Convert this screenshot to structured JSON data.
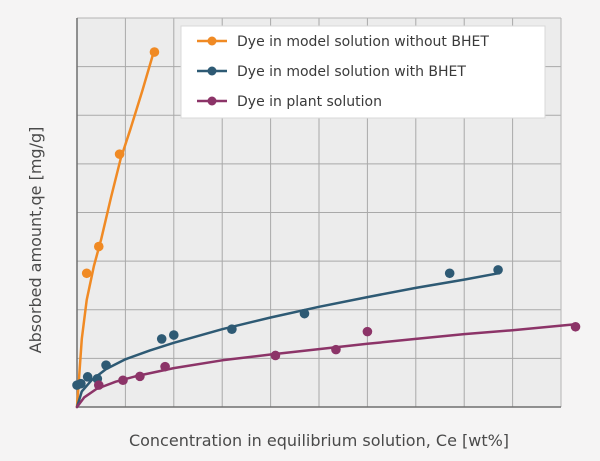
{
  "chart_data": {
    "type": "line",
    "title": "",
    "xlabel": "Concentration in equilibrium solution, Ce [wt%]",
    "ylabel": "Absorbed amount,qe [mg/g]",
    "x_tick_labels": "none",
    "y_tick_labels": "none",
    "xlim": [
      0,
      10
    ],
    "ylim": [
      0,
      8
    ],
    "grid": true,
    "legend_position": "top-right",
    "series": [
      {
        "name": "Dye in model solution without BHET",
        "color": "#f08a24",
        "points": [
          [
            0.2,
            2.75
          ],
          [
            0.45,
            3.3
          ],
          [
            0.88,
            5.2
          ],
          [
            1.6,
            7.3
          ]
        ],
        "fit": [
          [
            0.0,
            0.0
          ],
          [
            0.1,
            1.4
          ],
          [
            0.2,
            2.2
          ],
          [
            0.35,
            2.9
          ],
          [
            0.5,
            3.45
          ],
          [
            0.7,
            4.3
          ],
          [
            0.9,
            5.1
          ],
          [
            1.1,
            5.7
          ],
          [
            1.35,
            6.5
          ],
          [
            1.6,
            7.35
          ]
        ]
      },
      {
        "name": "Dye in model solution with BHET",
        "color": "#2e5a74",
        "points": [
          [
            0.0,
            0.45
          ],
          [
            0.08,
            0.48
          ],
          [
            0.22,
            0.62
          ],
          [
            0.42,
            0.58
          ],
          [
            0.6,
            0.86
          ],
          [
            1.75,
            1.4
          ],
          [
            2.0,
            1.48
          ],
          [
            3.2,
            1.6
          ],
          [
            4.7,
            1.92
          ],
          [
            7.7,
            2.75
          ],
          [
            8.7,
            2.82
          ]
        ],
        "fit": [
          [
            0.0,
            0.0
          ],
          [
            0.1,
            0.32
          ],
          [
            0.3,
            0.55
          ],
          [
            0.6,
            0.78
          ],
          [
            1.0,
            0.98
          ],
          [
            1.5,
            1.16
          ],
          [
            2.0,
            1.32
          ],
          [
            3.0,
            1.6
          ],
          [
            4.0,
            1.84
          ],
          [
            5.0,
            2.06
          ],
          [
            6.0,
            2.26
          ],
          [
            7.0,
            2.45
          ],
          [
            8.0,
            2.62
          ],
          [
            8.7,
            2.75
          ]
        ]
      },
      {
        "name": "Dye in plant solution",
        "color": "#8c3468",
        "points": [
          [
            0.45,
            0.45
          ],
          [
            0.95,
            0.55
          ],
          [
            1.3,
            0.63
          ],
          [
            1.82,
            0.83
          ],
          [
            4.1,
            1.06
          ],
          [
            5.35,
            1.18
          ],
          [
            6.0,
            1.55
          ],
          [
            10.3,
            1.65
          ]
        ],
        "fit": [
          [
            0.0,
            0.0
          ],
          [
            0.15,
            0.2
          ],
          [
            0.4,
            0.37
          ],
          [
            0.8,
            0.52
          ],
          [
            1.2,
            0.63
          ],
          [
            2.0,
            0.8
          ],
          [
            3.0,
            0.96
          ],
          [
            4.0,
            1.08
          ],
          [
            5.0,
            1.19
          ],
          [
            6.0,
            1.3
          ],
          [
            7.0,
            1.4
          ],
          [
            8.0,
            1.5
          ],
          [
            9.0,
            1.58
          ],
          [
            10.3,
            1.7
          ]
        ]
      }
    ]
  }
}
